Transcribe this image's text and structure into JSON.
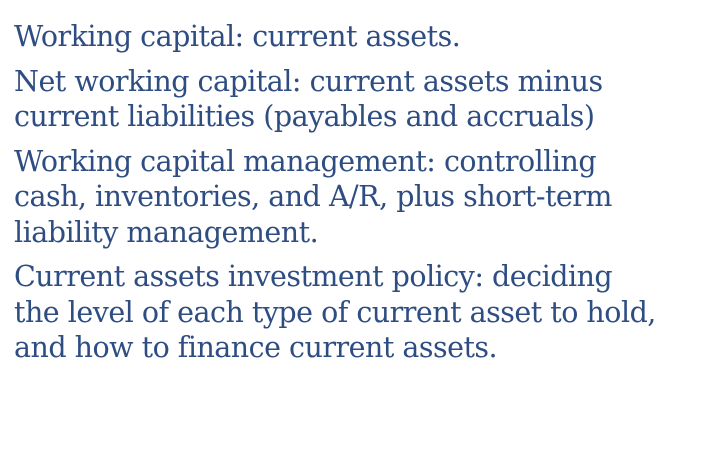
{
  "definitions": [
    {
      "lines": [
        "Working capital: current assets."
      ]
    },
    {
      "lines": [
        "Net working capital:  current assets minus",
        "current liabilities (payables and accruals)"
      ]
    },
    {
      "lines": [
        "Working capital management: controlling",
        "cash, inventories, and A/R, plus short-term",
        "liability management."
      ]
    },
    {
      "lines": [
        "Current assets investment policy:  deciding",
        "the level of each type of current asset to hold,",
        "and how to finance current assets."
      ]
    }
  ],
  "colors": {
    "text": "#2e4d82",
    "background": "#ffffff"
  }
}
